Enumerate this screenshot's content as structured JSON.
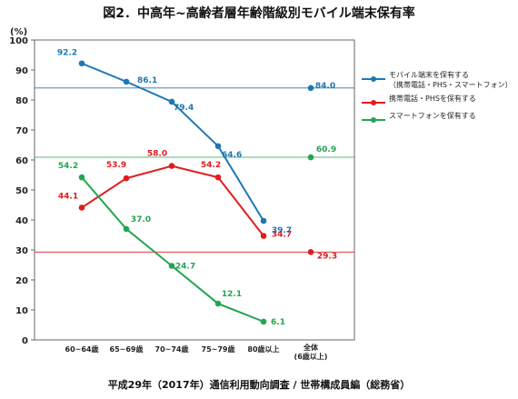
{
  "chart_data": {
    "type": "line",
    "title": "図2．中高年~高齢者層年齢階級別モバイル端末保有率",
    "y_unit": "(%)",
    "ylim": [
      0,
      100
    ],
    "y_ticks": [
      "0",
      "10",
      "20",
      "30",
      "40",
      "50",
      "60",
      "70",
      "80",
      "90",
      "100"
    ],
    "categories": [
      "60~64歳",
      "65~69歳",
      "70~74歳",
      "75~79歳",
      "80歳以上"
    ],
    "total_category": [
      "全体",
      "(6歳以上)"
    ],
    "grid": false,
    "legend_position": "right",
    "series": [
      {
        "name": "モバイル端末を保有する",
        "name_sub": "（携帯電話・PHS・スマートフォン）",
        "color": "#1f77b4",
        "values": [
          92.2,
          86.1,
          79.4,
          64.6,
          39.7
        ],
        "labels": [
          "92.2",
          "86.1",
          "79.4",
          "64.6",
          "39.7"
        ],
        "total": 84.0,
        "total_label": "84.0"
      },
      {
        "name": "携帯電話・PHSを保有する",
        "color": "#e31a1c",
        "values": [
          44.1,
          53.9,
          58.0,
          54.2,
          34.7
        ],
        "labels": [
          "44.1",
          "53.9",
          "58.0",
          "54.2",
          "34.7"
        ],
        "total": 29.3,
        "total_label": "29.3"
      },
      {
        "name": "スマートフォンを保有する",
        "color": "#22a552",
        "values": [
          54.2,
          37.0,
          24.7,
          12.1,
          6.1
        ],
        "labels": [
          "54.2",
          "37.0",
          "24.7",
          "12.1",
          "6.1"
        ],
        "total": 60.9,
        "total_label": "60.9"
      }
    ]
  },
  "source": "平成29年（2017年）通信利用動向調査 / 世帯構成員編（総務省）"
}
